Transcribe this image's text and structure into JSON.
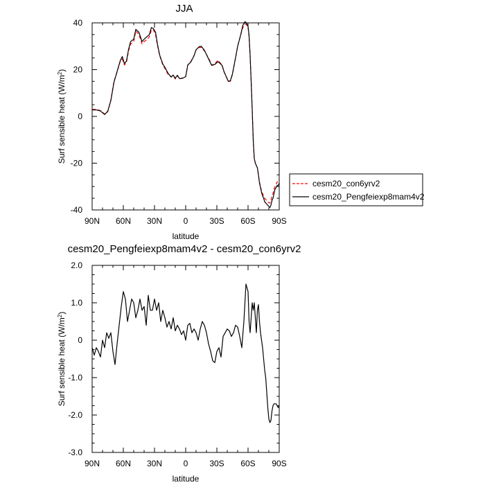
{
  "chart_data": [
    {
      "type": "line",
      "title": "JJA",
      "xlabel": "",
      "ylabel": "Surf sensible heat (W/m²)",
      "ylabel_main": "Surf sensible heat (W/m",
      "ylabel_sup": "2",
      "ylabel_close": ")",
      "xlim": [
        90,
        -90
      ],
      "ylim": [
        -40,
        40
      ],
      "x_ticks": [
        90,
        60,
        30,
        0,
        -30,
        -60,
        -90
      ],
      "x_tick_labels": [
        "90N",
        "60N",
        "30N",
        "0",
        "30S",
        "60S",
        "90S"
      ],
      "y_ticks": [
        -40,
        -20,
        0,
        20,
        40
      ],
      "y_tick_labels": [
        "-40",
        "-20",
        "0",
        "20",
        "40"
      ],
      "legend_placement": "right",
      "series": [
        {
          "name": "cesm20_con6yrv2",
          "color": "#ff0000",
          "dash": "dashed",
          "x": [
            90,
            86,
            82,
            78,
            75,
            72,
            69,
            66,
            63,
            61,
            59,
            57,
            55,
            53,
            50,
            48,
            45,
            42,
            40,
            37,
            35,
            33,
            31,
            29,
            27,
            25,
            22,
            20,
            17,
            14,
            12,
            10,
            8,
            6,
            3,
            0,
            -2,
            -5,
            -8,
            -10,
            -13,
            -15,
            -18,
            -20,
            -23,
            -25,
            -28,
            -31,
            -33,
            -35,
            -37,
            -39,
            -41,
            -43,
            -45,
            -48,
            -50,
            -53,
            -55,
            -57,
            -58,
            -60,
            -61,
            -62,
            -63,
            -64,
            -65,
            -66,
            -67,
            -68,
            -69,
            -70,
            -71,
            -72,
            -73,
            -74,
            -75,
            -76,
            -78,
            -80,
            -81,
            -82,
            -83,
            -84,
            -85,
            -86,
            -87,
            -88,
            -89,
            -90
          ],
          "y": [
            3,
            3,
            2.5,
            1,
            2,
            7,
            15,
            19,
            23.5,
            24.5,
            22,
            23,
            28,
            31,
            32,
            36.5,
            35,
            31,
            32,
            33,
            34,
            37,
            37,
            35,
            30,
            26,
            22,
            20.5,
            18,
            17,
            17.5,
            16,
            17.5,
            16,
            16.5,
            17,
            22,
            23.5,
            26,
            28.5,
            29.5,
            29.5,
            28,
            26.5,
            24,
            22,
            22.5,
            24,
            23,
            22,
            19,
            17,
            15,
            15,
            18,
            25,
            30,
            35,
            38,
            39.5,
            39.5,
            38,
            34,
            26,
            15,
            3,
            -10,
            -18,
            -20,
            -21,
            -22,
            -25,
            -28,
            -30,
            -32,
            -33,
            -34,
            -35,
            -36,
            -37,
            -37,
            -36,
            -34,
            -33,
            -31,
            -30,
            -29,
            -28,
            -28,
            -27
          ]
        },
        {
          "name": "cesm20_Pengfeiexp8mam4v2",
          "color": "#000000",
          "dash": "solid",
          "x": [
            90,
            86,
            82,
            78,
            75,
            72,
            69,
            66,
            63,
            61,
            59,
            57,
            55,
            53,
            50,
            48,
            45,
            42,
            40,
            37,
            35,
            33,
            31,
            29,
            27,
            25,
            22,
            20,
            17,
            14,
            12,
            10,
            8,
            6,
            3,
            0,
            -2,
            -5,
            -8,
            -10,
            -13,
            -15,
            -18,
            -20,
            -23,
            -25,
            -28,
            -31,
            -33,
            -35,
            -37,
            -39,
            -41,
            -43,
            -45,
            -48,
            -50,
            -53,
            -55,
            -57,
            -58,
            -60,
            -61,
            -62,
            -63,
            -64,
            -65,
            -66,
            -67,
            -68,
            -69,
            -70,
            -71,
            -72,
            -73,
            -74,
            -75,
            -76,
            -78,
            -80,
            -81,
            -82,
            -83,
            -84,
            -85,
            -86,
            -87,
            -88,
            -89,
            -90
          ],
          "y": [
            2.8,
            2.8,
            2.3,
            0.8,
            2.2,
            6.8,
            14.6,
            19.2,
            23.8,
            25.6,
            22.6,
            23.6,
            28.6,
            32,
            33,
            37.2,
            36,
            32,
            33,
            34.2,
            35,
            38,
            37.5,
            36,
            30.5,
            26.2,
            22.4,
            21,
            18.5,
            16.8,
            17.7,
            16.3,
            17.6,
            16.2,
            16.3,
            17,
            22,
            23.3,
            25.9,
            28.5,
            29.8,
            30,
            28.3,
            26.5,
            23.6,
            21.8,
            22.2,
            23.4,
            22.7,
            21.8,
            19,
            17,
            15,
            15.3,
            18.2,
            25.2,
            30,
            35,
            39,
            40.5,
            40.2,
            38.5,
            34.5,
            26,
            15,
            3,
            -10,
            -18,
            -20,
            -21,
            -22,
            -25,
            -28.5,
            -30.5,
            -32.5,
            -34,
            -35,
            -36.5,
            -37.5,
            -38.5,
            -39,
            -38,
            -36,
            -35,
            -33,
            -31,
            -30.5,
            -29.5,
            -29.5,
            -28.5
          ]
        }
      ]
    },
    {
      "type": "line",
      "title": "cesm20_Pengfeiexp8mam4v2 - cesm20_con6yrv2",
      "xlabel": "latitude",
      "ylabel": "Surf sensible heat (W/m²)",
      "ylabel_main": "Surf sensible heat (W/m",
      "ylabel_sup": "2",
      "ylabel_close": ")",
      "xlim": [
        90,
        -90
      ],
      "ylim": [
        -3.0,
        2.0
      ],
      "x_ticks": [
        90,
        60,
        30,
        0,
        -30,
        -60,
        -90
      ],
      "x_tick_labels": [
        "90N",
        "60N",
        "30N",
        "0",
        "30S",
        "60S",
        "90S"
      ],
      "y_ticks": [
        -3,
        -2,
        -1,
        0,
        1,
        2
      ],
      "y_tick_labels": [
        "-3.0",
        "-2.0",
        "-1.0",
        "0",
        "1.0",
        "2.0"
      ],
      "series": [
        {
          "name": "",
          "color": "#000000",
          "dash": "solid",
          "x": [
            90,
            88,
            86,
            84,
            82,
            80,
            78,
            76,
            74,
            72,
            70,
            68,
            66,
            64,
            62,
            60,
            58,
            56,
            54,
            52,
            50,
            48,
            46,
            44,
            42,
            40,
            38,
            36,
            34,
            32,
            30,
            28,
            26,
            24,
            22,
            20,
            18,
            16,
            14,
            12,
            10,
            8,
            6,
            4,
            2,
            0,
            -2,
            -4,
            -6,
            -8,
            -10,
            -12,
            -14,
            -16,
            -18,
            -20,
            -22,
            -24,
            -26,
            -28,
            -30,
            -32,
            -34,
            -36,
            -38,
            -40,
            -42,
            -44,
            -46,
            -48,
            -50,
            -52,
            -54,
            -56,
            -58,
            -60,
            -61,
            -62,
            -63,
            -64,
            -65,
            -66,
            -67,
            -68,
            -69,
            -70,
            -71,
            -72,
            -73,
            -74,
            -75,
            -76,
            -77,
            -78,
            -79,
            -80,
            -81,
            -82,
            -83,
            -84,
            -85,
            -86,
            -87,
            -88,
            -89,
            -90
          ],
          "y": [
            -0.2,
            -0.4,
            -0.2,
            -0.3,
            -0.45,
            0,
            -0.2,
            0.2,
            0.05,
            0.2,
            -0.3,
            -0.65,
            -0.1,
            0.4,
            0.9,
            1.3,
            1.1,
            0.5,
            0.8,
            1.1,
            1.0,
            0.6,
            0.8,
            1.1,
            0.8,
            0.9,
            0.4,
            1.2,
            0.8,
            0.8,
            1.1,
            0.8,
            1.0,
            0.5,
            0.8,
            0.6,
            0.35,
            0.5,
            0.3,
            0.6,
            0.25,
            0.4,
            0.3,
            0.15,
            0.25,
            0.0,
            0.4,
            0.45,
            0.2,
            0.3,
            0.2,
            0.0,
            0.3,
            0.5,
            0.4,
            0.2,
            -0.1,
            -0.3,
            -0.55,
            -0.6,
            -0.3,
            -0.2,
            -0.45,
            0.1,
            0.2,
            0.3,
            0.25,
            0.1,
            0.2,
            0.4,
            0.35,
            0.1,
            -0.2,
            0.5,
            1.5,
            1.3,
            0.5,
            0.2,
            0.6,
            1.0,
            0.8,
            1.0,
            0.6,
            0.2,
            0.8,
            0.95,
            0.5,
            0.2,
            0.0,
            -0.2,
            -0.5,
            -0.8,
            -1.0,
            -1.4,
            -1.8,
            -2.1,
            -2.2,
            -2.15,
            -1.9,
            -1.75,
            -1.7,
            -1.7,
            -1.7,
            -1.75,
            -1.8,
            -1.75
          ]
        }
      ]
    }
  ]
}
